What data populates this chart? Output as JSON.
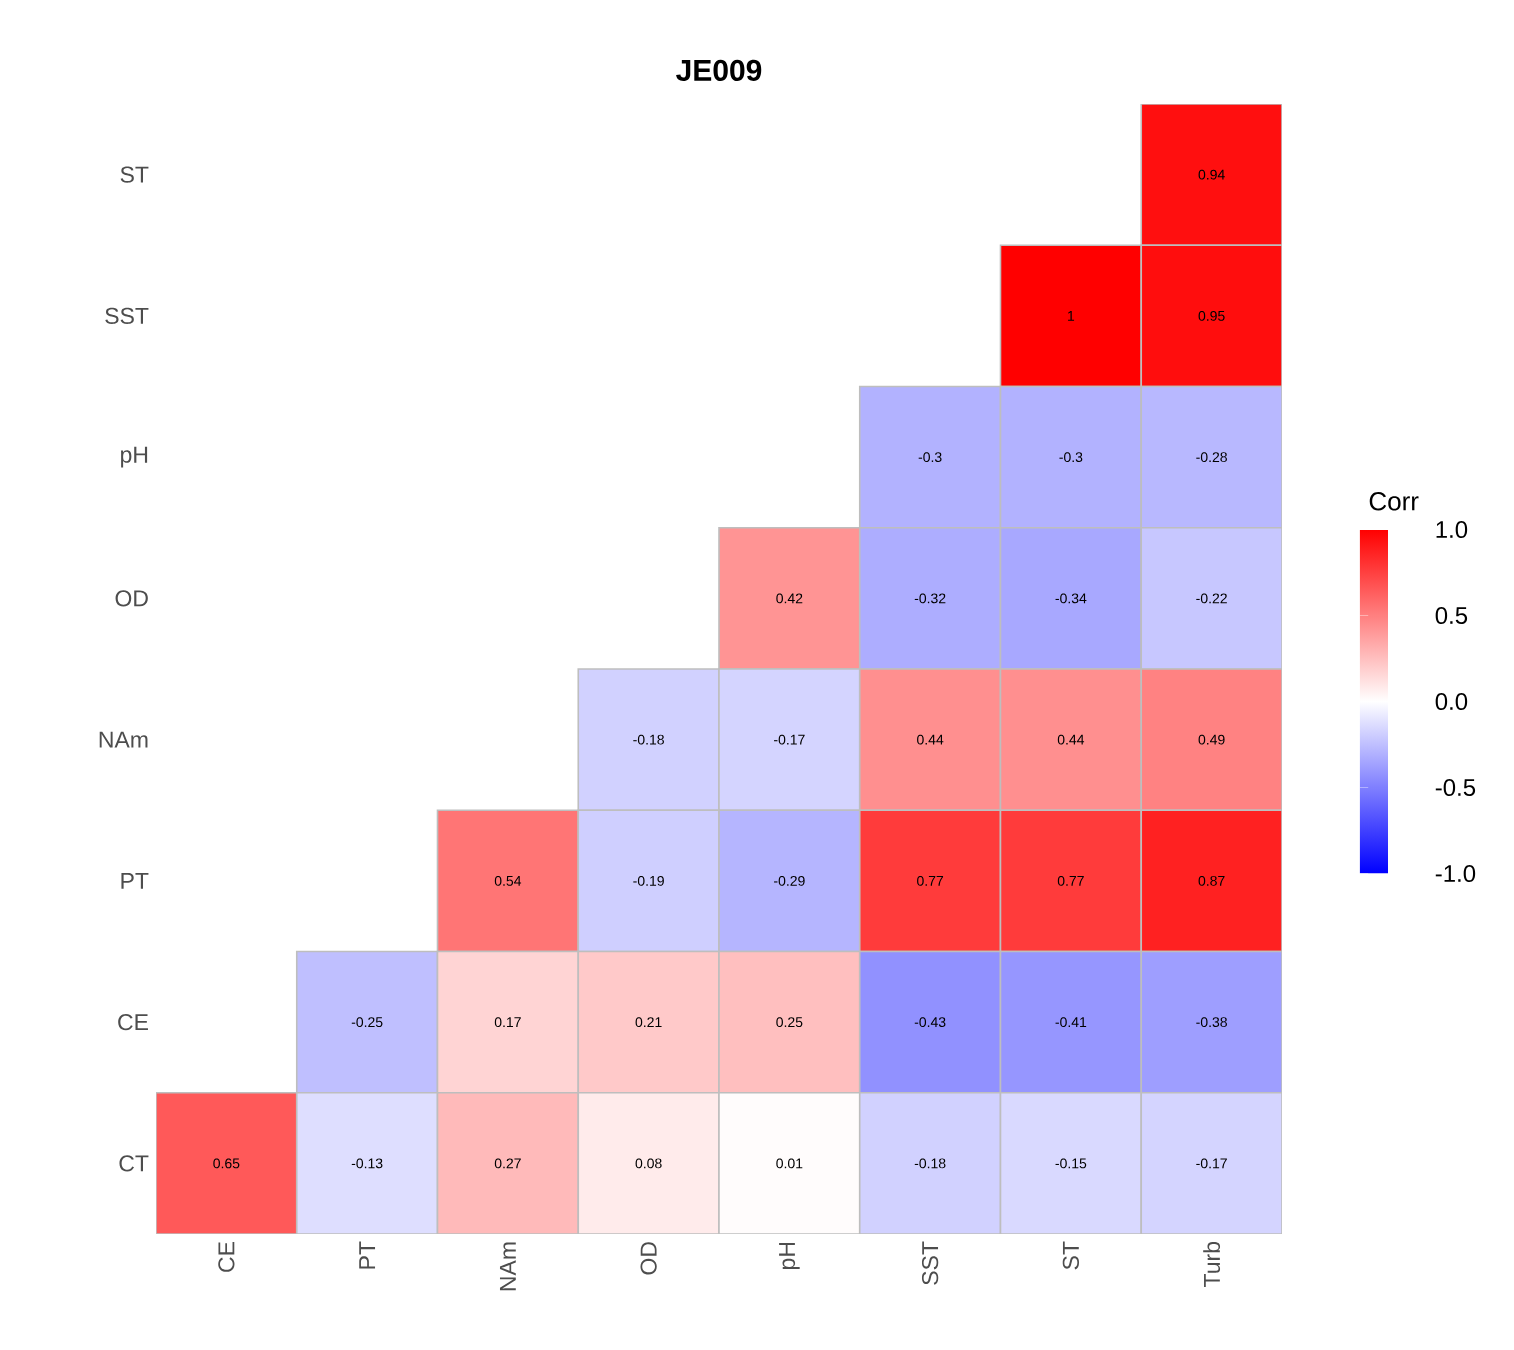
{
  "chart_data": {
    "type": "heatmap",
    "title": "JE009",
    "clabel": "Corr",
    "categories": [
      "CE",
      "PT",
      "NAm",
      "OD",
      "pH",
      "SST",
      "ST",
      "Turb"
    ],
    "y_categories": [
      "ST",
      "SST",
      "pH",
      "OD",
      "NAm",
      "PT",
      "CE",
      "CT"
    ],
    "cells": [
      [
        null,
        null,
        null,
        null,
        null,
        null,
        null,
        0.94
      ],
      [
        null,
        null,
        null,
        null,
        null,
        null,
        1,
        0.95
      ],
      [
        null,
        null,
        null,
        null,
        null,
        -0.3,
        -0.3,
        -0.28
      ],
      [
        null,
        null,
        null,
        null,
        0.42,
        -0.32,
        -0.34,
        -0.22
      ],
      [
        null,
        null,
        null,
        -0.18,
        -0.17,
        0.44,
        0.44,
        0.49
      ],
      [
        null,
        null,
        0.54,
        -0.19,
        -0.29,
        0.77,
        0.77,
        0.87
      ],
      [
        null,
        -0.25,
        0.17,
        0.21,
        0.25,
        -0.43,
        -0.41,
        -0.38
      ],
      [
        0.65,
        -0.13,
        0.27,
        0.08,
        0.01,
        -0.18,
        -0.15,
        -0.17
      ]
    ],
    "data_labels": true,
    "clim": [
      -1,
      1
    ],
    "cticks": [
      {
        "value": -1,
        "label": "-1.0"
      },
      {
        "value": -0.5,
        "label": "-0.5"
      },
      {
        "value": 0,
        "label": "0.0"
      },
      {
        "value": 0.5,
        "label": "0.5"
      },
      {
        "value": 1,
        "label": "1.0"
      }
    ]
  }
}
